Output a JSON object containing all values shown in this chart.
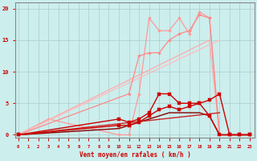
{
  "background_color": "#cceeed",
  "grid_color": "#aacccc",
  "xlabel": "Vent moyen/en rafales ( km/h )",
  "xlabel_color": "#cc0000",
  "yticks": [
    0,
    5,
    10,
    15,
    20
  ],
  "xticks": [
    0,
    1,
    2,
    3,
    4,
    5,
    6,
    7,
    8,
    9,
    10,
    11,
    12,
    13,
    14,
    15,
    16,
    17,
    18,
    19,
    20,
    21,
    22,
    23
  ],
  "xlim": [
    -0.3,
    23.5
  ],
  "ylim": [
    -0.5,
    21
  ],
  "series": [
    {
      "x": [
        0,
        3,
        10,
        11,
        12,
        13,
        14,
        15,
        16,
        17,
        18,
        19,
        20,
        21,
        22,
        23
      ],
      "y": [
        0,
        2.5,
        0,
        0,
        6.5,
        18.5,
        16.5,
        16.5,
        18.5,
        16,
        19.5,
        18.5,
        0,
        0,
        0,
        0
      ],
      "color": "#ff9999",
      "lw": 0.9,
      "marker": "D",
      "markersize": 1.8,
      "zorder": 2
    },
    {
      "x": [
        0,
        19,
        20,
        21,
        22,
        23
      ],
      "y": [
        0,
        15,
        0,
        0,
        0,
        0
      ],
      "color": "#ffaaaa",
      "lw": 0.9,
      "marker": null,
      "markersize": 0,
      "zorder": 2
    },
    {
      "x": [
        0,
        20
      ],
      "y": [
        0,
        15
      ],
      "color": "#ffbbbb",
      "lw": 0.9,
      "marker": null,
      "markersize": 0,
      "zorder": 2
    },
    {
      "x": [
        0,
        11,
        12,
        13,
        14,
        15,
        16,
        17,
        18,
        19,
        20,
        21,
        22,
        23
      ],
      "y": [
        0,
        6.5,
        12.5,
        13,
        13,
        15,
        16,
        16.5,
        19,
        18.5,
        0,
        0,
        0,
        0
      ],
      "color": "#ff8888",
      "lw": 0.9,
      "marker": "D",
      "markersize": 1.8,
      "zorder": 2
    },
    {
      "x": [
        0,
        10,
        11,
        12,
        13,
        14,
        15,
        16,
        17,
        18,
        19,
        20,
        21,
        22,
        23
      ],
      "y": [
        0,
        2.5,
        2,
        2.5,
        3.5,
        6.5,
        6.5,
        5,
        5,
        5,
        3,
        0,
        0,
        0,
        0
      ],
      "color": "#cc0000",
      "lw": 1.0,
      "marker": "s",
      "markersize": 2.2,
      "zorder": 4
    },
    {
      "x": [
        0,
        10,
        11,
        12,
        13,
        14,
        15,
        16,
        17,
        18,
        19,
        20,
        21,
        22,
        23
      ],
      "y": [
        0,
        1.5,
        1.5,
        2,
        3,
        4,
        4.5,
        4,
        4.5,
        5,
        5.5,
        6.5,
        0,
        0,
        0
      ],
      "color": "#cc0000",
      "lw": 1.0,
      "marker": "s",
      "markersize": 2.2,
      "zorder": 4
    },
    {
      "x": [
        0,
        10,
        11,
        12,
        13,
        14,
        15,
        16,
        17,
        18,
        19,
        20,
        21,
        22,
        23
      ],
      "y": [
        0,
        1,
        1.5,
        2,
        2.5,
        3,
        3.5,
        3.5,
        3.5,
        3.5,
        3,
        0,
        0,
        0,
        0
      ],
      "color": "#880000",
      "lw": 1.0,
      "marker": null,
      "markersize": 0,
      "zorder": 3
    },
    {
      "x": [
        0,
        20
      ],
      "y": [
        0,
        3.5
      ],
      "color": "#cc2222",
      "lw": 1.0,
      "marker": null,
      "markersize": 0,
      "zorder": 3
    }
  ],
  "tick_label_color": "#cc0000",
  "axis_color": "#888888",
  "left_spine_color": "#888888"
}
